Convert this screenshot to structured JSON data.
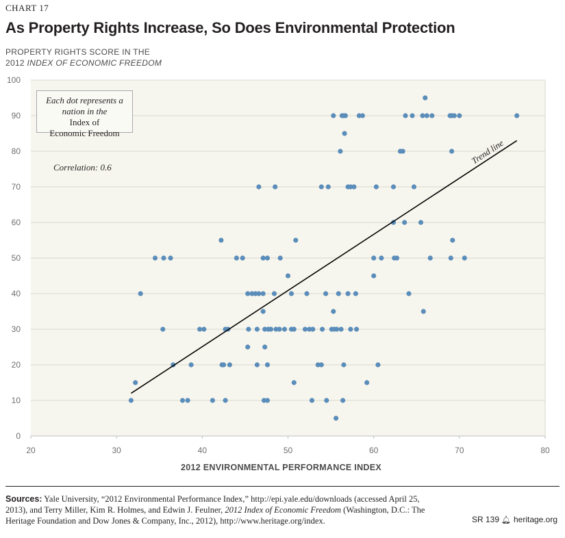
{
  "header": {
    "chart_number": "CHART 17",
    "title": "As Property Rights Increase, So Does Environmental Protection"
  },
  "y_axis_title": {
    "line1": "PROPERTY RIGHTS SCORE IN THE",
    "line2_prefix": "2012 ",
    "line2_italic": "INDEX OF ECONOMIC FREEDOM"
  },
  "annotation": {
    "line1": "Each dot represents a",
    "line2_a": "nation in the ",
    "line2_b": "Index of",
    "line3": "Economic Freedom"
  },
  "correlation_label": "Correlation: 0.6",
  "footer": {
    "sources_label": "Sources:",
    "sources_text_1": " Yale University, “2012 Environmental Performance Index,” http://epi.yale.edu/downloads (accessed April 25, 2013), and Terry Miller, Kim R. Holmes, and Edwin J. Feulner, ",
    "sources_italic": "2012 Index of Economic Freedom",
    "sources_text_2": " (Washington, D.C.: The Heritage Foundation and Dow Jones & Company, Inc., 2012), http://www.heritage.org/index.",
    "report_id": "SR 139",
    "site": "heritage.org",
    "bell_icon": "bell-icon"
  },
  "colors": {
    "plot_background": "#f7f6ee",
    "gridline": "#d9d8cf",
    "dot": "#5b8dba",
    "trend_line": "#000000"
  },
  "chart_data": {
    "type": "scatter",
    "title": "As Property Rights Increase, So Does Environmental Protection",
    "xlabel": "2012 ENVIRONMENTAL PERFORMANCE INDEX",
    "ylabel": "PROPERTY RIGHTS SCORE IN THE 2012 INDEX OF ECONOMIC FREEDOM",
    "xlim": [
      20,
      80
    ],
    "ylim": [
      0,
      100
    ],
    "xticks": [
      20,
      30,
      40,
      50,
      60,
      70,
      80
    ],
    "yticks": [
      0,
      10,
      20,
      30,
      40,
      50,
      60,
      70,
      80,
      90,
      100
    ],
    "grid": "horizontal",
    "trend_line": {
      "label": "Trend line",
      "start": [
        31.7,
        12
      ],
      "end": [
        76.7,
        83
      ]
    },
    "points": [
      [
        66.0,
        95
      ],
      [
        55.3,
        90
      ],
      [
        56.3,
        90
      ],
      [
        56.5,
        90
      ],
      [
        56.7,
        90
      ],
      [
        58.3,
        90
      ],
      [
        58.7,
        90
      ],
      [
        63.7,
        90
      ],
      [
        64.5,
        90
      ],
      [
        65.7,
        90
      ],
      [
        66.2,
        90
      ],
      [
        66.8,
        90
      ],
      [
        68.9,
        90
      ],
      [
        69.1,
        90
      ],
      [
        69.4,
        90
      ],
      [
        70.0,
        90
      ],
      [
        76.7,
        90
      ],
      [
        56.6,
        85
      ],
      [
        56.1,
        80
      ],
      [
        63.1,
        80
      ],
      [
        63.4,
        80
      ],
      [
        69.1,
        80
      ],
      [
        46.6,
        70
      ],
      [
        48.5,
        70
      ],
      [
        53.9,
        70
      ],
      [
        54.7,
        70
      ],
      [
        57.0,
        70
      ],
      [
        57.3,
        70
      ],
      [
        57.7,
        70
      ],
      [
        60.3,
        70
      ],
      [
        62.3,
        70
      ],
      [
        64.7,
        70
      ],
      [
        62.3,
        60
      ],
      [
        63.6,
        60
      ],
      [
        65.5,
        60
      ],
      [
        42.2,
        55
      ],
      [
        50.9,
        55
      ],
      [
        69.2,
        55
      ],
      [
        34.5,
        50
      ],
      [
        35.5,
        50
      ],
      [
        36.3,
        50
      ],
      [
        44.0,
        50
      ],
      [
        44.7,
        50
      ],
      [
        47.1,
        50
      ],
      [
        47.6,
        50
      ],
      [
        49.1,
        50
      ],
      [
        60.0,
        50
      ],
      [
        60.9,
        50
      ],
      [
        62.4,
        50
      ],
      [
        62.7,
        50
      ],
      [
        66.6,
        50
      ],
      [
        69.0,
        50
      ],
      [
        70.6,
        50
      ],
      [
        50.0,
        45
      ],
      [
        60.0,
        45
      ],
      [
        32.8,
        40
      ],
      [
        45.3,
        40
      ],
      [
        45.8,
        40
      ],
      [
        46.2,
        40
      ],
      [
        46.6,
        40
      ],
      [
        47.1,
        40
      ],
      [
        48.4,
        40
      ],
      [
        50.4,
        40
      ],
      [
        52.2,
        40
      ],
      [
        54.4,
        40
      ],
      [
        55.9,
        40
      ],
      [
        57.0,
        40
      ],
      [
        57.9,
        40
      ],
      [
        64.1,
        40
      ],
      [
        65.8,
        35
      ],
      [
        55.3,
        35
      ],
      [
        47.1,
        35
      ],
      [
        35.4,
        30
      ],
      [
        39.7,
        30
      ],
      [
        40.2,
        30
      ],
      [
        42.7,
        30
      ],
      [
        43.0,
        30
      ],
      [
        45.4,
        30
      ],
      [
        46.4,
        30
      ],
      [
        47.3,
        30
      ],
      [
        47.7,
        30
      ],
      [
        48.0,
        30
      ],
      [
        48.6,
        30
      ],
      [
        49.0,
        30
      ],
      [
        49.6,
        30
      ],
      [
        50.4,
        30
      ],
      [
        50.7,
        30
      ],
      [
        52.0,
        30
      ],
      [
        52.5,
        30
      ],
      [
        52.9,
        30
      ],
      [
        54.0,
        30
      ],
      [
        55.1,
        30
      ],
      [
        55.4,
        30
      ],
      [
        55.7,
        30
      ],
      [
        56.2,
        30
      ],
      [
        57.3,
        30
      ],
      [
        58.0,
        30
      ],
      [
        45.3,
        25
      ],
      [
        47.3,
        25
      ],
      [
        36.6,
        20
      ],
      [
        38.7,
        20
      ],
      [
        42.3,
        20
      ],
      [
        42.5,
        20
      ],
      [
        43.2,
        20
      ],
      [
        46.4,
        20
      ],
      [
        47.6,
        20
      ],
      [
        53.5,
        20
      ],
      [
        53.9,
        20
      ],
      [
        56.5,
        20
      ],
      [
        60.5,
        20
      ],
      [
        32.2,
        15
      ],
      [
        50.7,
        15
      ],
      [
        59.2,
        15
      ],
      [
        31.7,
        10
      ],
      [
        37.7,
        10
      ],
      [
        38.3,
        10
      ],
      [
        41.2,
        10
      ],
      [
        42.7,
        10
      ],
      [
        47.2,
        10
      ],
      [
        47.6,
        10
      ],
      [
        52.8,
        10
      ],
      [
        54.5,
        10
      ],
      [
        56.4,
        10
      ],
      [
        55.6,
        5
      ]
    ]
  }
}
